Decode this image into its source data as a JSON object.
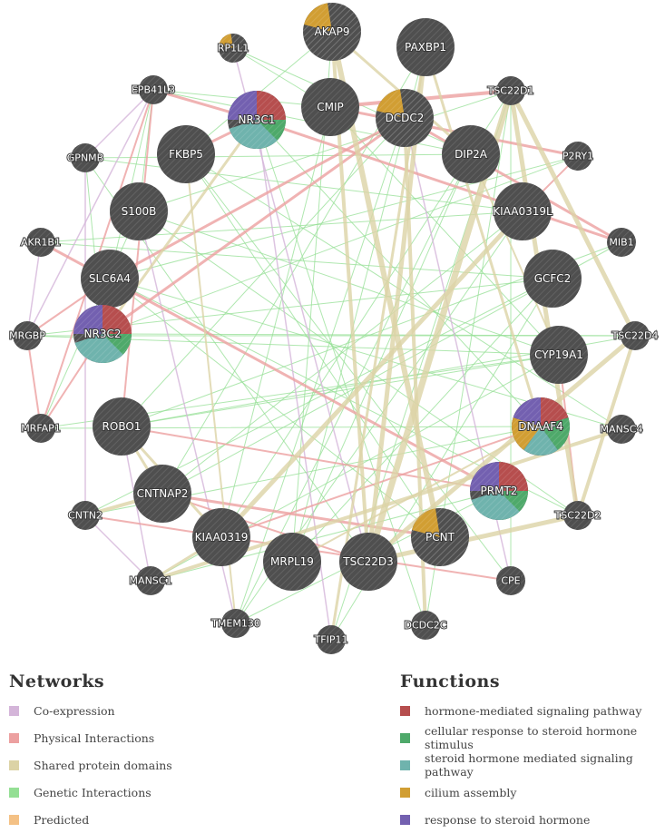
{
  "nodes": [
    {
      "id": "AKAP9",
      "size": "big",
      "fn": [
        "cilium"
      ]
    },
    {
      "id": "PAXBP1",
      "size": "big",
      "fn": []
    },
    {
      "id": "RP1L1",
      "size": "small",
      "fn": [
        "cilium"
      ]
    },
    {
      "id": "EPB41L3",
      "size": "small",
      "fn": []
    },
    {
      "id": "NR3C1",
      "size": "big",
      "fn": [
        "hormone",
        "cellular",
        "steroid_mediated",
        "response"
      ]
    },
    {
      "id": "CMIP",
      "size": "big",
      "fn": []
    },
    {
      "id": "DCDC2",
      "size": "big",
      "fn": [
        "cilium"
      ]
    },
    {
      "id": "TSC22D1",
      "size": "small",
      "fn": []
    },
    {
      "id": "GPNMB",
      "size": "small",
      "fn": []
    },
    {
      "id": "FKBP5",
      "size": "big",
      "fn": []
    },
    {
      "id": "DIP2A",
      "size": "big",
      "fn": []
    },
    {
      "id": "P2RY1",
      "size": "small",
      "fn": []
    },
    {
      "id": "S100B",
      "size": "big",
      "fn": []
    },
    {
      "id": "KIAA0319L",
      "size": "big",
      "fn": []
    },
    {
      "id": "AKR1B1",
      "size": "small",
      "fn": []
    },
    {
      "id": "MIB1",
      "size": "small",
      "fn": []
    },
    {
      "id": "SLC6A4",
      "size": "big",
      "fn": []
    },
    {
      "id": "GCFC2",
      "size": "big",
      "fn": []
    },
    {
      "id": "MRGBP",
      "size": "small",
      "fn": []
    },
    {
      "id": "TSC22D4",
      "size": "small",
      "fn": []
    },
    {
      "id": "NR3C2",
      "size": "big",
      "fn": [
        "hormone",
        "cellular",
        "steroid_mediated",
        "response"
      ]
    },
    {
      "id": "CYP19A1",
      "size": "big",
      "fn": []
    },
    {
      "id": "MRFAP1",
      "size": "small",
      "fn": []
    },
    {
      "id": "ROBO1",
      "size": "big",
      "fn": []
    },
    {
      "id": "DNAAF4",
      "size": "big",
      "fn": [
        "hormone",
        "cellular",
        "steroid_mediated",
        "cilium",
        "response"
      ]
    },
    {
      "id": "MANSC4",
      "size": "small",
      "fn": []
    },
    {
      "id": "CNTNAP2",
      "size": "big",
      "fn": []
    },
    {
      "id": "PRMT2",
      "size": "big",
      "fn": [
        "hormone",
        "cellular",
        "steroid_mediated",
        "response"
      ]
    },
    {
      "id": "CNTN2",
      "size": "small",
      "fn": []
    },
    {
      "id": "TSC22D2",
      "size": "small",
      "fn": []
    },
    {
      "id": "KIAA0319",
      "size": "big",
      "fn": []
    },
    {
      "id": "PCNT",
      "size": "big",
      "fn": [
        "cilium"
      ]
    },
    {
      "id": "MRPL19",
      "size": "big",
      "fn": []
    },
    {
      "id": "TSC22D3",
      "size": "big",
      "fn": []
    },
    {
      "id": "MANSC1",
      "size": "small",
      "fn": []
    },
    {
      "id": "CPE",
      "size": "small",
      "fn": []
    },
    {
      "id": "TMEM130",
      "size": "small",
      "fn": []
    },
    {
      "id": "TFIP11",
      "size": "small",
      "fn": []
    },
    {
      "id": "DCDC2C",
      "size": "small",
      "fn": []
    }
  ],
  "edges": [
    {
      "a": "AKAP9",
      "b": "PCNT",
      "type": "shared",
      "w": 6
    },
    {
      "a": "AKAP9",
      "b": "TSC22D3",
      "type": "shared",
      "w": 4
    },
    {
      "a": "AKAP9",
      "b": "DIP2A",
      "type": "shared",
      "w": 3
    },
    {
      "a": "PAXBP1",
      "b": "TSC22D3",
      "type": "shared",
      "w": 5
    },
    {
      "a": "PAXBP1",
      "b": "DNAAF4",
      "type": "shared",
      "w": 3
    },
    {
      "a": "PAXBP1",
      "b": "TFIP11",
      "type": "shared",
      "w": 3
    },
    {
      "a": "TSC22D1",
      "b": "TSC22D3",
      "type": "shared",
      "w": 7
    },
    {
      "a": "TSC22D1",
      "b": "TSC22D4",
      "type": "shared",
      "w": 5
    },
    {
      "a": "TSC22D1",
      "b": "TSC22D2",
      "type": "shared",
      "w": 5
    },
    {
      "a": "TSC22D2",
      "b": "TSC22D3",
      "type": "shared",
      "w": 5
    },
    {
      "a": "TSC22D4",
      "b": "TSC22D3",
      "type": "shared",
      "w": 5
    },
    {
      "a": "TSC22D4",
      "b": "TSC22D2",
      "type": "shared",
      "w": 4
    },
    {
      "a": "KIAA0319L",
      "b": "KIAA0319",
      "type": "shared",
      "w": 5
    },
    {
      "a": "DCDC2",
      "b": "DCDC2C",
      "type": "shared",
      "w": 4
    },
    {
      "a": "CNTNAP2",
      "b": "CNTN2",
      "type": "shared",
      "w": 4
    },
    {
      "a": "CNTNAP2",
      "b": "ROBO1",
      "type": "shared",
      "w": 3
    },
    {
      "a": "KIAA0319",
      "b": "ROBO1",
      "type": "shared",
      "w": 3
    },
    {
      "a": "MANSC1",
      "b": "MANSC4",
      "type": "shared",
      "w": 4
    },
    {
      "a": "KIAA0319",
      "b": "MANSC1",
      "type": "shared",
      "w": 3
    },
    {
      "a": "NR3C1",
      "b": "NR3C2",
      "type": "shared",
      "w": 3
    },
    {
      "a": "FKBP5",
      "b": "TMEM130",
      "type": "shared",
      "w": 2
    },
    {
      "a": "DIP2A",
      "b": "CYP19A1",
      "type": "shared",
      "w": 2
    },
    {
      "a": "MRPL19",
      "b": "DNAAF4",
      "type": "shared",
      "w": 2
    },
    {
      "a": "CMIP",
      "b": "TSC22D1",
      "type": "physical",
      "w": 4
    },
    {
      "a": "CMIP",
      "b": "P2RY1",
      "type": "physical",
      "w": 3
    },
    {
      "a": "NR3C1",
      "b": "EPB41L3",
      "type": "physical",
      "w": 3
    },
    {
      "a": "NR3C1",
      "b": "FKBP5",
      "type": "physical",
      "w": 3
    },
    {
      "a": "NR3C1",
      "b": "MIB1",
      "type": "physical",
      "w": 3
    },
    {
      "a": "DCDC2",
      "b": "SLC6A4",
      "type": "physical",
      "w": 3
    },
    {
      "a": "DCDC2",
      "b": "MIB1",
      "type": "physical",
      "w": 3
    },
    {
      "a": "NR3C2",
      "b": "DCDC2",
      "type": "physical",
      "w": 3
    },
    {
      "a": "NR3C2",
      "b": "MRFAP1",
      "type": "physical",
      "w": 2
    },
    {
      "a": "EPB41L3",
      "b": "MRFAP1",
      "type": "physical",
      "w": 2
    },
    {
      "a": "EPB41L3",
      "b": "ROBO1",
      "type": "physical",
      "w": 2
    },
    {
      "a": "AKR1B1",
      "b": "PRMT2",
      "type": "physical",
      "w": 3
    },
    {
      "a": "SLC6A4",
      "b": "MRGBP",
      "type": "physical",
      "w": 2
    },
    {
      "a": "CNTNAP2",
      "b": "PCNT",
      "type": "physical",
      "w": 3
    },
    {
      "a": "CNTN2",
      "b": "CPE",
      "type": "physical",
      "w": 2
    },
    {
      "a": "ROBO1",
      "b": "PRMT2",
      "type": "physical",
      "w": 2
    },
    {
      "a": "KIAA0319",
      "b": "DNAAF4",
      "type": "physical",
      "w": 2
    },
    {
      "a": "CNTNAP2",
      "b": "TSC22D3",
      "type": "physical",
      "w": 2
    },
    {
      "a": "TSC22D2",
      "b": "CYP19A1",
      "type": "physical",
      "w": 2
    },
    {
      "a": "P2RY1",
      "b": "KIAA0319L",
      "type": "physical",
      "w": 2
    },
    {
      "a": "MRGBP",
      "b": "MRFAP1",
      "type": "physical",
      "w": 2
    },
    {
      "a": "EPB41L3",
      "b": "GPNMB",
      "type": "coexp",
      "w": 1.5
    },
    {
      "a": "RP1L1",
      "b": "TSC22D3",
      "type": "coexp",
      "w": 1.5
    },
    {
      "a": "EPB41L3",
      "b": "MRGBP",
      "type": "coexp",
      "w": 1.5
    },
    {
      "a": "AKR1B1",
      "b": "MRGBP",
      "type": "coexp",
      "w": 1.5
    },
    {
      "a": "CNTN2",
      "b": "MANSC1",
      "type": "coexp",
      "w": 1.5
    },
    {
      "a": "GPNMB",
      "b": "CNTN2",
      "type": "coexp",
      "w": 1.5
    },
    {
      "a": "S100B",
      "b": "TMEM130",
      "type": "coexp",
      "w": 1.5
    },
    {
      "a": "DCDC2",
      "b": "CPE",
      "type": "coexp",
      "w": 1.5
    },
    {
      "a": "ROBO1",
      "b": "MANSC1",
      "type": "coexp",
      "w": 1.5
    },
    {
      "a": "NR3C1",
      "b": "TFIP11",
      "type": "coexp",
      "w": 1.5
    },
    {
      "a": "EPB41L3",
      "b": "CMIP",
      "type": "genetic",
      "w": 1
    },
    {
      "a": "EPB41L3",
      "b": "S100B",
      "type": "genetic",
      "w": 1
    },
    {
      "a": "EPB41L3",
      "b": "SLC6A4",
      "type": "genetic",
      "w": 1
    },
    {
      "a": "EPB41L3",
      "b": "DIP2A",
      "type": "genetic",
      "w": 1
    },
    {
      "a": "RP1L1",
      "b": "CMIP",
      "type": "genetic",
      "w": 1
    },
    {
      "a": "RP1L1",
      "b": "DIP2A",
      "type": "genetic",
      "w": 1
    },
    {
      "a": "GPNMB",
      "b": "DIP2A",
      "type": "genetic",
      "w": 1
    },
    {
      "a": "GPNMB",
      "b": "KIAA0319L",
      "type": "genetic",
      "w": 1
    },
    {
      "a": "GPNMB",
      "b": "NR3C2",
      "type": "genetic",
      "w": 1
    },
    {
      "a": "AKR1B1",
      "b": "KIAA0319L",
      "type": "genetic",
      "w": 1
    },
    {
      "a": "AKR1B1",
      "b": "GCFC2",
      "type": "genetic",
      "w": 1
    },
    {
      "a": "MRGBP",
      "b": "GCFC2",
      "type": "genetic",
      "w": 1
    },
    {
      "a": "MRGBP",
      "b": "CYP19A1",
      "type": "genetic",
      "w": 1
    },
    {
      "a": "MRFAP1",
      "b": "CYP19A1",
      "type": "genetic",
      "w": 1
    },
    {
      "a": "MRFAP1",
      "b": "DNAAF4",
      "type": "genetic",
      "w": 1
    },
    {
      "a": "MRFAP1",
      "b": "S100B",
      "type": "genetic",
      "w": 1
    },
    {
      "a": "CNTN2",
      "b": "DNAAF4",
      "type": "genetic",
      "w": 1
    },
    {
      "a": "CNTN2",
      "b": "GCFC2",
      "type": "genetic",
      "w": 1
    },
    {
      "a": "MANSC1",
      "b": "PRMT2",
      "type": "genetic",
      "w": 1
    },
    {
      "a": "MANSC1",
      "b": "CYP19A1",
      "type": "genetic",
      "w": 1
    },
    {
      "a": "TMEM130",
      "b": "DIP2A",
      "type": "genetic",
      "w": 1
    },
    {
      "a": "TMEM130",
      "b": "KIAA0319L",
      "type": "genetic",
      "w": 1
    },
    {
      "a": "TFIP11",
      "b": "TSC22D1",
      "type": "genetic",
      "w": 1
    },
    {
      "a": "TFIP11",
      "b": "GCFC2",
      "type": "genetic",
      "w": 1
    },
    {
      "a": "DCDC2C",
      "b": "TSC22D1",
      "type": "genetic",
      "w": 1
    },
    {
      "a": "DCDC2C",
      "b": "NR3C1",
      "type": "genetic",
      "w": 1
    },
    {
      "a": "CPE",
      "b": "TSC22D1",
      "type": "genetic",
      "w": 1
    },
    {
      "a": "CPE",
      "b": "FKBP5",
      "type": "genetic",
      "w": 1
    },
    {
      "a": "TSC22D2",
      "b": "S100B",
      "type": "genetic",
      "w": 1
    },
    {
      "a": "TSC22D2",
      "b": "SLC6A4",
      "type": "genetic",
      "w": 1
    },
    {
      "a": "MANSC4",
      "b": "SLC6A4",
      "type": "genetic",
      "w": 1
    },
    {
      "a": "MANSC4",
      "b": "FKBP5",
      "type": "genetic",
      "w": 1
    },
    {
      "a": "TSC22D4",
      "b": "ROBO1",
      "type": "genetic",
      "w": 1
    },
    {
      "a": "TSC22D4",
      "b": "NR3C2",
      "type": "genetic",
      "w": 1
    },
    {
      "a": "MIB1",
      "b": "ROBO1",
      "type": "genetic",
      "w": 1
    },
    {
      "a": "MIB1",
      "b": "CNTNAP2",
      "type": "genetic",
      "w": 1
    },
    {
      "a": "P2RY1",
      "b": "SLC6A4",
      "type": "genetic",
      "w": 1
    },
    {
      "a": "P2RY1",
      "b": "NR3C2",
      "type": "genetic",
      "w": 1
    },
    {
      "a": "TSC22D1",
      "b": "S100B",
      "type": "genetic",
      "w": 1
    },
    {
      "a": "TSC22D1",
      "b": "KIAA0319",
      "type": "genetic",
      "w": 1
    },
    {
      "a": "PAXBP1",
      "b": "MRPL19",
      "type": "genetic",
      "w": 1
    },
    {
      "a": "PAXBP1",
      "b": "CNTNAP2",
      "type": "genetic",
      "w": 1
    },
    {
      "a": "AKAP9",
      "b": "MRPL19",
      "type": "genetic",
      "w": 1
    },
    {
      "a": "AKAP9",
      "b": "FKBP5",
      "type": "genetic",
      "w": 1
    },
    {
      "a": "CMIP",
      "b": "CYP19A1",
      "type": "genetic",
      "w": 1
    },
    {
      "a": "CMIP",
      "b": "KIAA0319",
      "type": "genetic",
      "w": 1
    },
    {
      "a": "FKBP5",
      "b": "PCNT",
      "type": "genetic",
      "w": 1
    },
    {
      "a": "S100B",
      "b": "CYP19A1",
      "type": "genetic",
      "w": 1
    },
    {
      "a": "SLC6A4",
      "b": "PCNT",
      "type": "genetic",
      "w": 1
    },
    {
      "a": "NR3C1",
      "b": "DNAAF4",
      "type": "genetic",
      "w": 1
    },
    {
      "a": "DIP2A",
      "b": "MRPL19",
      "type": "genetic",
      "w": 1
    },
    {
      "a": "KIAA0319L",
      "b": "CNTNAP2",
      "type": "genetic",
      "w": 1
    },
    {
      "a": "GCFC2",
      "b": "MRPL19",
      "type": "genetic",
      "w": 1
    },
    {
      "a": "CYP19A1",
      "b": "ROBO1",
      "type": "genetic",
      "w": 1
    },
    {
      "a": "DCDC2",
      "b": "ROBO1",
      "type": "genetic",
      "w": 1
    },
    {
      "a": "DCDC2",
      "b": "TMEM130",
      "type": "genetic",
      "w": 1
    },
    {
      "a": "PRMT2",
      "b": "TMEM130",
      "type": "genetic",
      "w": 1
    },
    {
      "a": "GPNMB",
      "b": "TSC22D3",
      "type": "genetic",
      "w": 1
    },
    {
      "a": "MRGBP",
      "b": "TSC22D4",
      "type": "genetic",
      "w": 1
    }
  ],
  "networks": {
    "title": "Networks",
    "items": [
      {
        "label": "Co-expression",
        "color": "#d4b5d9"
      },
      {
        "label": "Physical Interactions",
        "color": "#eca0a0"
      },
      {
        "label": "Shared protein domains",
        "color": "#dcd3a6"
      },
      {
        "label": "Genetic Interactions",
        "color": "#94df94"
      },
      {
        "label": "Predicted",
        "color": "#f4c185"
      }
    ]
  },
  "functions": {
    "title": "Functions",
    "items": [
      {
        "key": "hormone",
        "label": "hormone-mediated signaling pathway",
        "color": "#b64e4e"
      },
      {
        "key": "cellular",
        "label": "cellular response to steroid hormone stimulus",
        "color": "#4ea96a"
      },
      {
        "key": "steroid_mediated",
        "label": "steroid hormone mediated signaling pathway",
        "color": "#6fb3ad"
      },
      {
        "key": "cilium",
        "label": "cilium assembly",
        "color": "#d19e33"
      },
      {
        "key": "response",
        "label": "response to steroid hormone",
        "color": "#7360b0"
      }
    ]
  },
  "colors": {
    "node_fill": "#4f4f4f",
    "node_hatch": "#5d5d5d",
    "coexp": "#d4b5d9",
    "physical": "#eca0a0",
    "shared": "#dcd3a6",
    "genetic": "#94df94",
    "predicted": "#f4c185"
  }
}
